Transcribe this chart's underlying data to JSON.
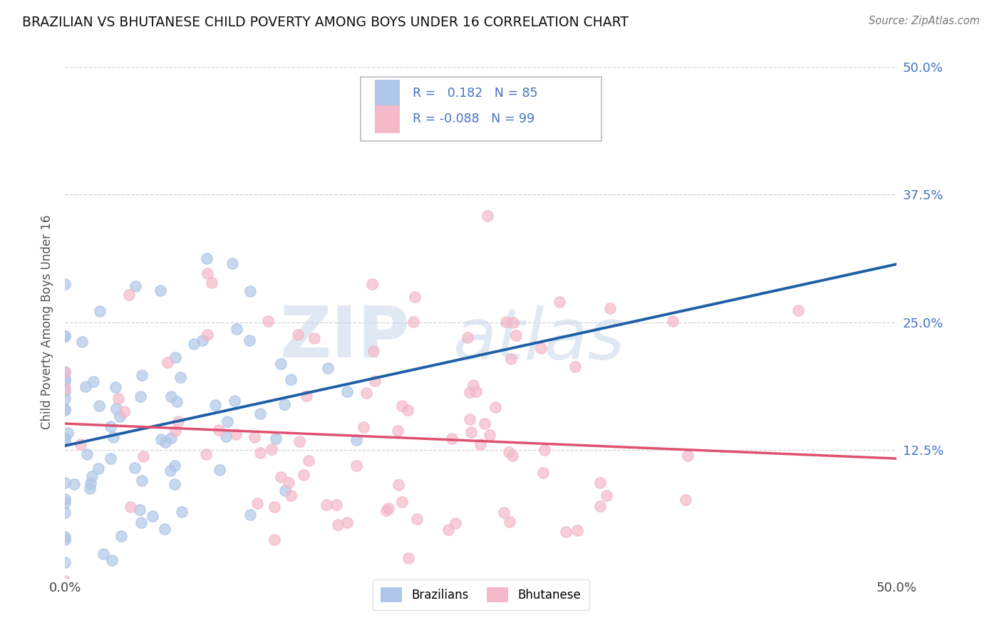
{
  "title": "BRAZILIAN VS BHUTANESE CHILD POVERTY AMONG BOYS UNDER 16 CORRELATION CHART",
  "source": "Source: ZipAtlas.com",
  "ylabel": "Child Poverty Among Boys Under 16",
  "xmin": 0.0,
  "xmax": 0.5,
  "ymin": 0.0,
  "ymax": 0.5,
  "yticks": [
    0.0,
    0.125,
    0.25,
    0.375,
    0.5
  ],
  "ytick_labels": [
    "",
    "12.5%",
    "25.0%",
    "37.5%",
    "50.0%"
  ],
  "xtick_labels": [
    "0.0%",
    "50.0%"
  ],
  "color_blue": "#aec6e8",
  "color_pink": "#f4b8c8",
  "color_line_blue": "#1f5fa6",
  "color_line_pink": "#e05070",
  "color_line_dash": "#9abbd4",
  "watermark_zip": "ZIP",
  "watermark_atlas": "atlas",
  "bg_color": "#ffffff",
  "grid_color": "#c8c8c8",
  "brazil_R": 0.182,
  "brazil_N": 85,
  "bhutan_R": -0.088,
  "bhutan_N": 99,
  "legend_text_color": "#4472c4",
  "legend_label_color": "#333333"
}
